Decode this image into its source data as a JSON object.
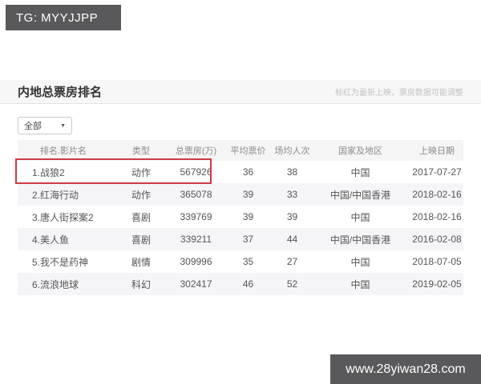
{
  "watermarks": {
    "top": "TG: MYYJJPP",
    "bottom": "www.28yiwan28.com"
  },
  "panel": {
    "title": "内地总票房排名",
    "note": "标红为最新上映，票房数据可能调整",
    "filter": {
      "selected": "全部",
      "arrow": "▼"
    }
  },
  "table": {
    "headers": [
      "排名.影片名",
      "类型",
      "总票房(万)",
      "平均票价",
      "场均人次",
      "国家及地区",
      "上映日期"
    ],
    "rows": [
      {
        "name": "1.战狼2",
        "type": "动作",
        "box": "567926",
        "price": "36",
        "attendance": "38",
        "region": "中国",
        "date": "2017-07-27",
        "highlighted": true
      },
      {
        "name": "2.红海行动",
        "type": "动作",
        "box": "365078",
        "price": "39",
        "attendance": "33",
        "region": "中国/中国香港",
        "date": "2018-02-16",
        "highlighted": false
      },
      {
        "name": "3.唐人街探案2",
        "type": "喜剧",
        "box": "339769",
        "price": "39",
        "attendance": "39",
        "region": "中国",
        "date": "2018-02-16",
        "highlighted": false
      },
      {
        "name": "4.美人鱼",
        "type": "喜剧",
        "box": "339211",
        "price": "37",
        "attendance": "44",
        "region": "中国/中国香港",
        "date": "2016-02-08",
        "highlighted": false
      },
      {
        "name": "5.我不是药神",
        "type": "剧情",
        "box": "309996",
        "price": "35",
        "attendance": "27",
        "region": "中国",
        "date": "2018-07-05",
        "highlighted": false
      },
      {
        "name": "6.流浪地球",
        "type": "科幻",
        "box": "302417",
        "price": "46",
        "attendance": "52",
        "region": "中国",
        "date": "2019-02-05",
        "highlighted": false
      }
    ]
  },
  "colors": {
    "watermark_bg": "#59595b",
    "highlight_border": "#cf3a44",
    "title_band_bg": "#f7f7f8",
    "stripe_bg": "#f5f5f8"
  }
}
